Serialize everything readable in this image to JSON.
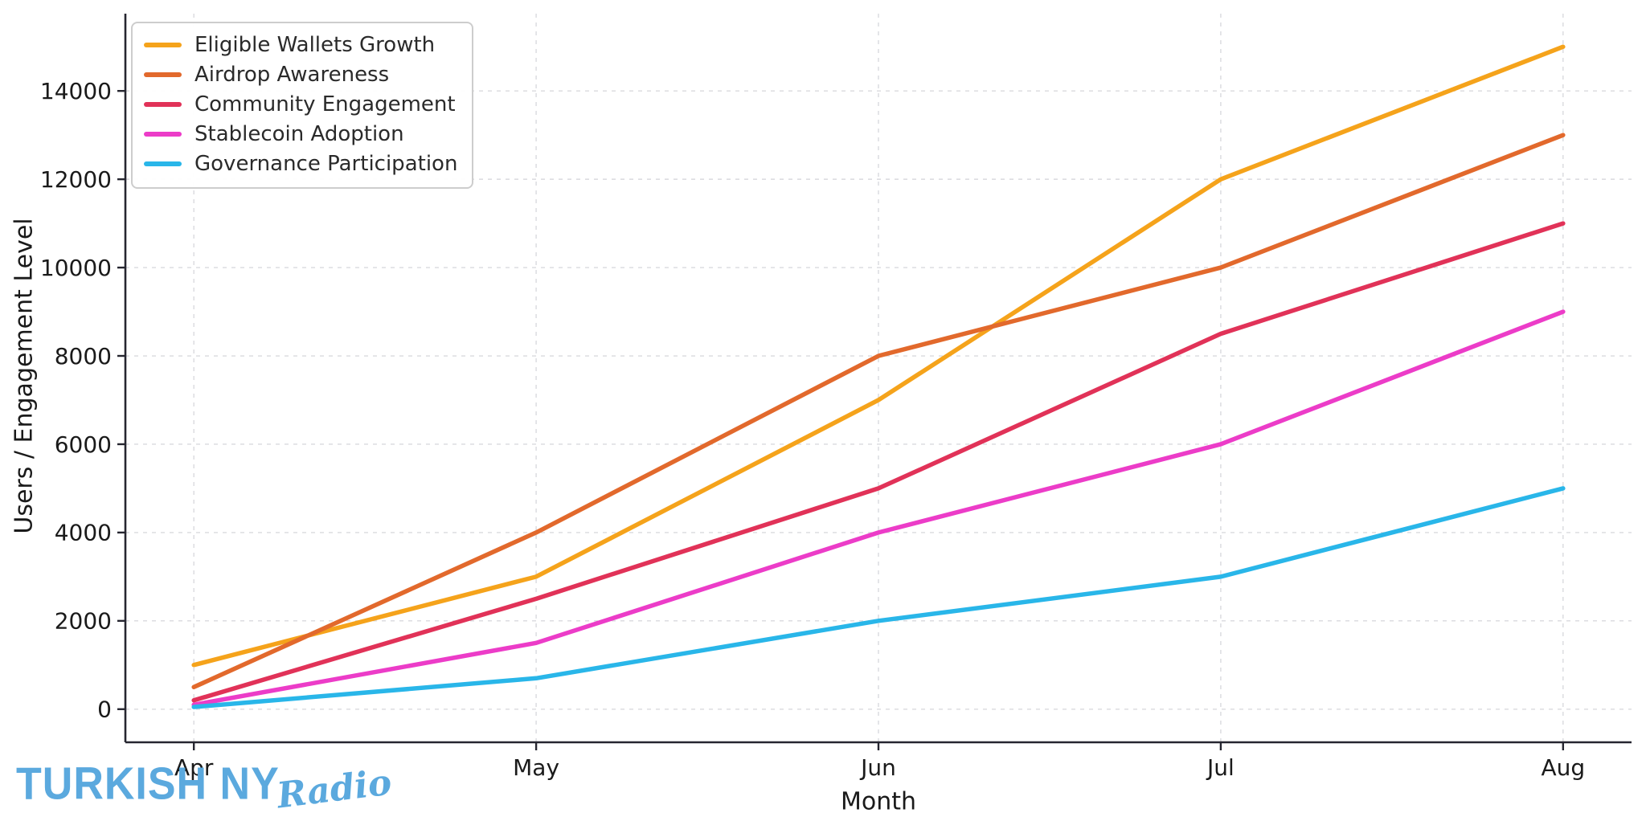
{
  "branding": {
    "logo_main": "TURKISH NY",
    "logo_script": "Radio",
    "logo_color": "#5BA9DE"
  },
  "chart_data": {
    "type": "line",
    "title": "",
    "xlabel": "Month",
    "ylabel": "Users / Engagement Level",
    "categories": [
      "Apr",
      "May",
      "Jun",
      "Jul",
      "Aug"
    ],
    "yticks": [
      0,
      2000,
      4000,
      6000,
      8000,
      10000,
      12000,
      14000
    ],
    "ylim": [
      0,
      15000
    ],
    "grid": true,
    "grid_style": "dashed",
    "legend_position": "upper-left",
    "series": [
      {
        "name": "Eligible Wallets Growth",
        "color": "#F5A31B",
        "values": [
          1000,
          3000,
          7000,
          12000,
          15000
        ]
      },
      {
        "name": "Airdrop Awareness",
        "color": "#E2692C",
        "values": [
          500,
          4000,
          8000,
          10000,
          13000
        ]
      },
      {
        "name": "Community Engagement",
        "color": "#E13258",
        "values": [
          200,
          2500,
          5000,
          8500,
          11000
        ]
      },
      {
        "name": "Stablecoin Adoption",
        "color": "#EC3CC8",
        "values": [
          100,
          1500,
          4000,
          6000,
          9000
        ]
      },
      {
        "name": "Governance Participation",
        "color": "#29B6E9",
        "values": [
          50,
          700,
          2000,
          3000,
          5000
        ]
      }
    ],
    "axis_color": "#262630",
    "tick_label_color": "#1a1a1a",
    "gridline_color": "#d9dade"
  }
}
